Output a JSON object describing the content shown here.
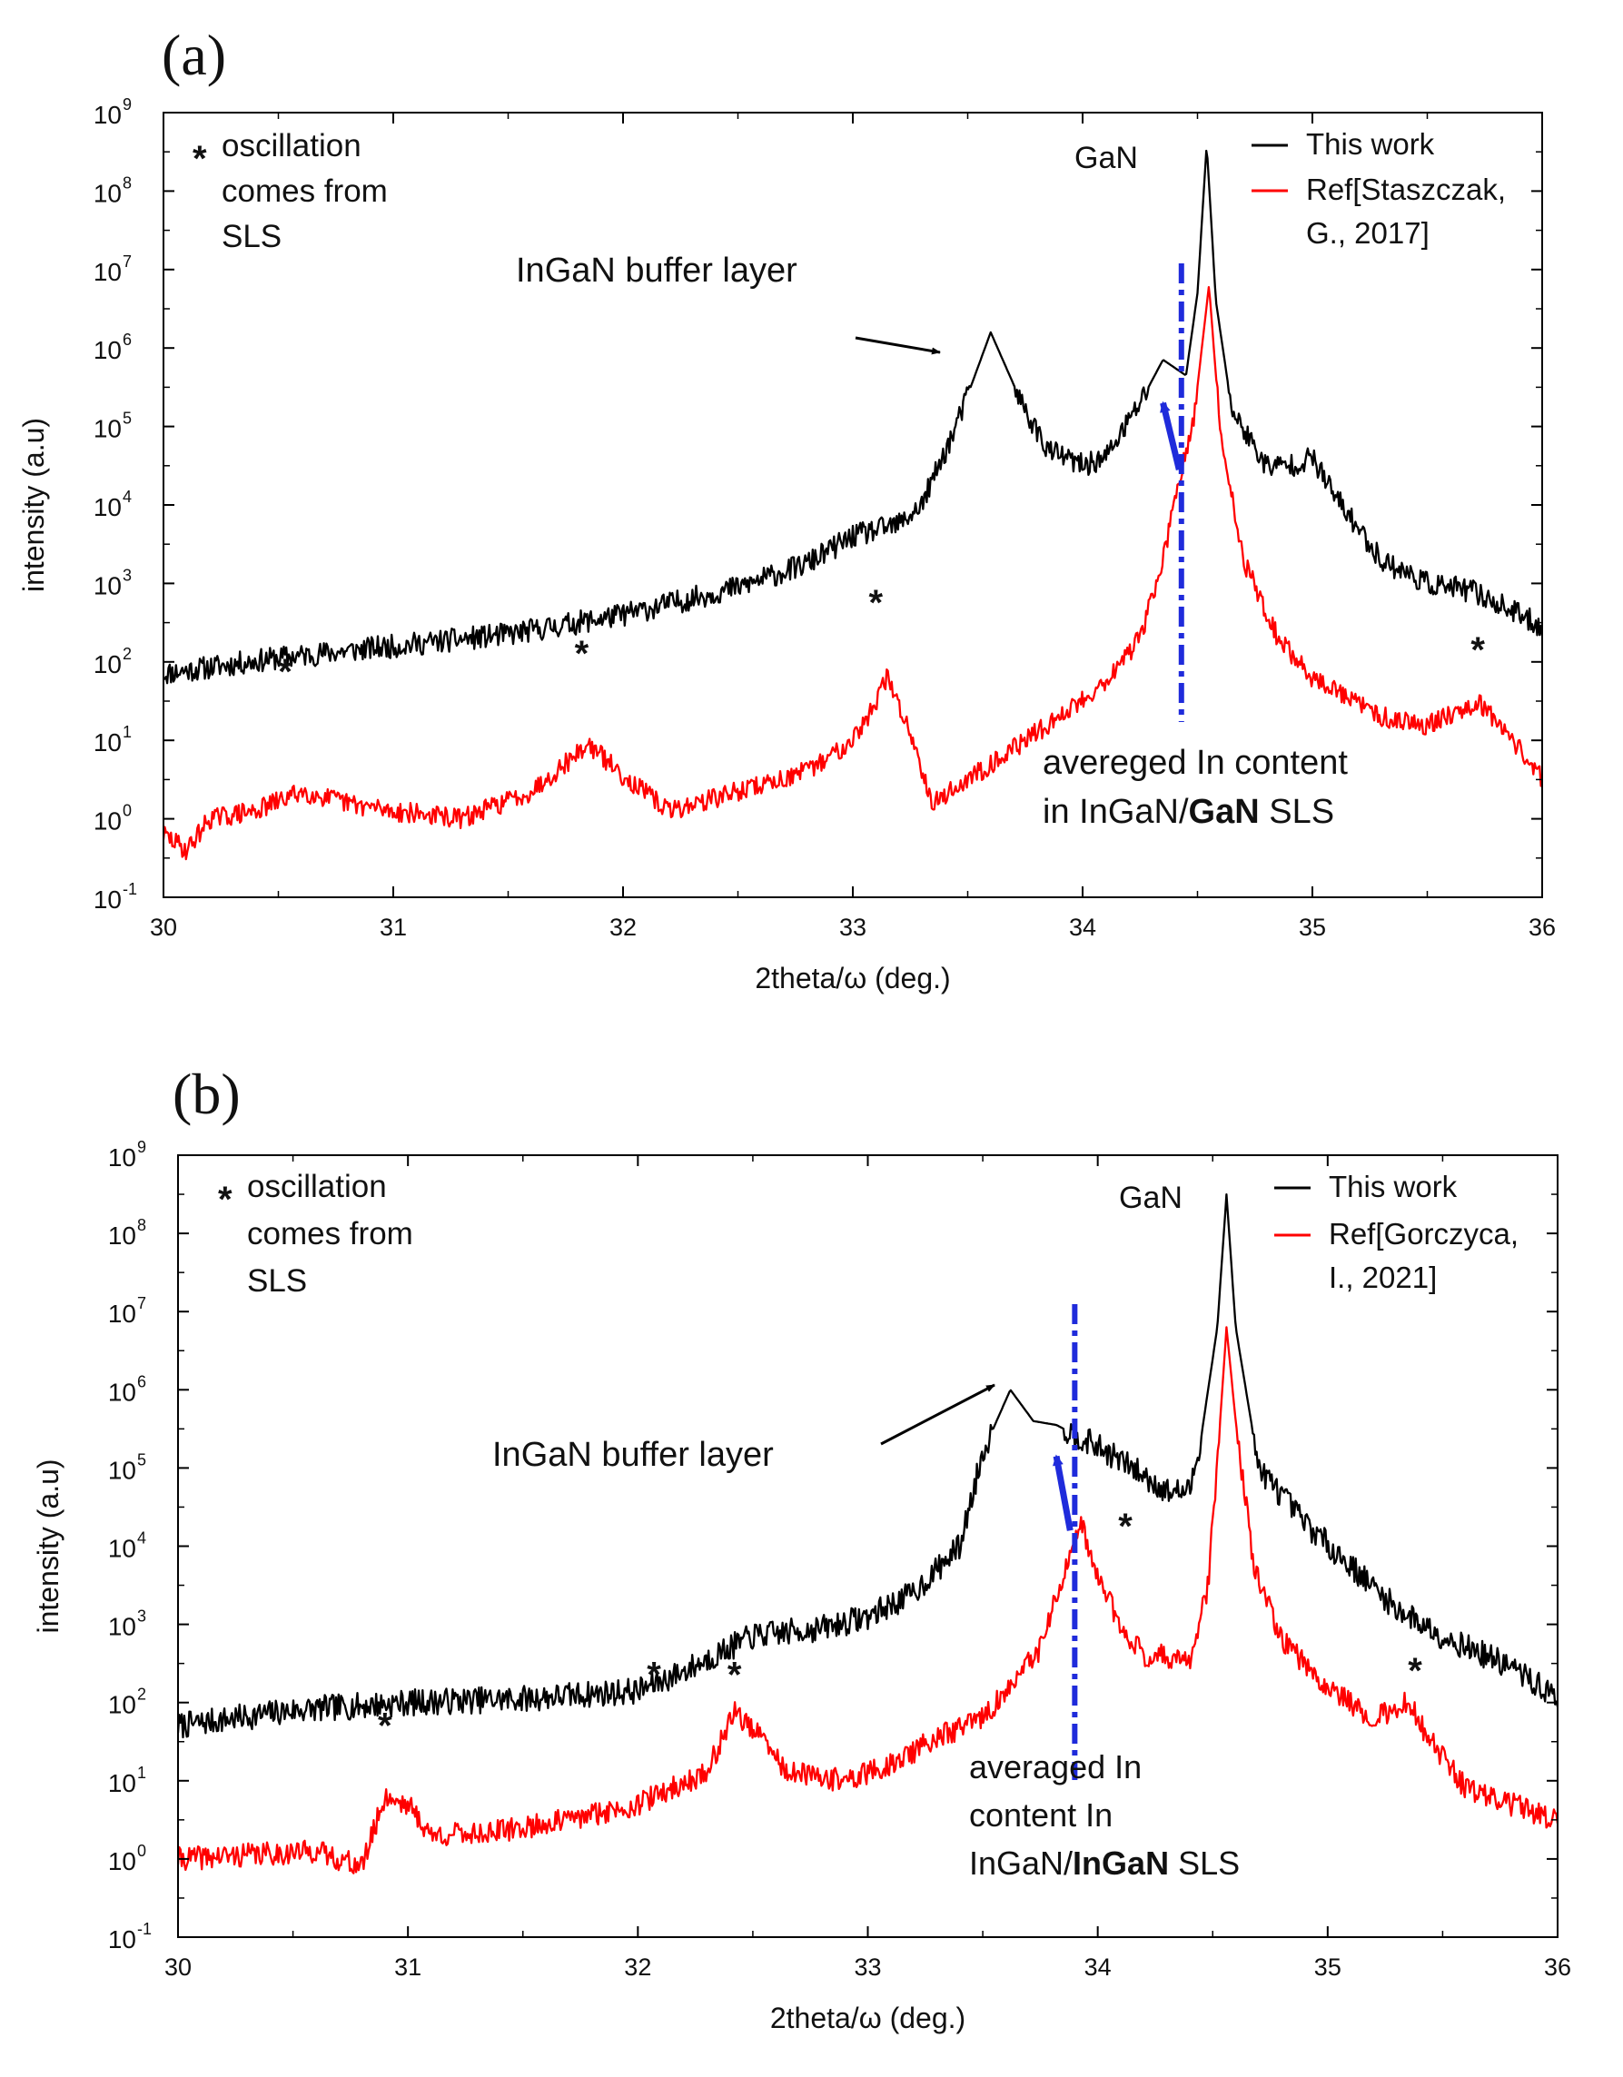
{
  "figure": {
    "panel_labels": [
      "(a)",
      "(b)"
    ]
  },
  "chart_data": [
    {
      "panel": "(a)",
      "type": "line",
      "xlabel": "2theta/ω (deg.)",
      "ylabel": "intensity (a.u)",
      "xlim": [
        30,
        36
      ],
      "ylim_log10": [
        -1,
        9
      ],
      "y_scale": "log",
      "xticks": [
        "30",
        "31",
        "32",
        "33",
        "34",
        "35",
        "36"
      ],
      "yticks": [
        {
          "base": "10",
          "exp": "-1"
        },
        {
          "base": "10",
          "exp": "0"
        },
        {
          "base": "10",
          "exp": "1"
        },
        {
          "base": "10",
          "exp": "2"
        },
        {
          "base": "10",
          "exp": "3"
        },
        {
          "base": "10",
          "exp": "4"
        },
        {
          "base": "10",
          "exp": "5"
        },
        {
          "base": "10",
          "exp": "6"
        },
        {
          "base": "10",
          "exp": "7"
        },
        {
          "base": "10",
          "exp": "8"
        },
        {
          "base": "10",
          "exp": "9"
        }
      ],
      "legend": {
        "position": "top-right",
        "entries": [
          {
            "label_lines": [
              "This work"
            ],
            "color": "#000000"
          },
          {
            "label_lines": [
              "Ref[Staszczak,",
              "G., 2017]"
            ],
            "color": "#ff0000"
          }
        ]
      },
      "note": {
        "star": "*",
        "lines": [
          "oscillation",
          "comes from",
          "SLS"
        ]
      },
      "annotations": {
        "gan": "GaN",
        "buffer": "InGaN buffer layer",
        "avg_lines": [
          {
            "text": "avereged In content"
          },
          {
            "pre": "in InGaN/",
            "bold": "GaN",
            "post": " SLS"
          }
        ]
      },
      "dashed_line_x": 34.43,
      "arrow": {
        "x_from": 34.42,
        "y_from_log10": 4.45,
        "x_to": 34.35,
        "y_to_log10": 5.3
      },
      "stars": [
        {
          "x": 30.53,
          "y_log10": 1.72
        },
        {
          "x": 31.82,
          "y_log10": 1.95
        },
        {
          "x": 33.1,
          "y_log10": 2.6
        },
        {
          "x": 35.72,
          "y_log10": 2.0
        }
      ],
      "series": [
        {
          "name": "This work",
          "color": "#000000",
          "noise": 0.15,
          "seed": 11,
          "points": [
            [
              30,
              1.85
            ],
            [
              30.5,
              2.05
            ],
            [
              31,
              2.2
            ],
            [
              31.5,
              2.35
            ],
            [
              32,
              2.6
            ],
            [
              32.5,
              2.95
            ],
            [
              32.8,
              3.25
            ],
            [
              33,
              3.6
            ],
            [
              33.2,
              3.75
            ],
            [
              33.3,
              4.0
            ],
            [
              33.45,
              5.0
            ],
            [
              33.6,
              6.2
            ],
            [
              33.75,
              5.2
            ],
            [
              33.85,
              4.7
            ],
            [
              34.0,
              4.5
            ],
            [
              34.1,
              4.6
            ],
            [
              34.25,
              5.3
            ],
            [
              34.35,
              5.85
            ],
            [
              34.45,
              5.65
            ],
            [
              34.5,
              6.7
            ],
            [
              34.54,
              8.6
            ],
            [
              34.58,
              6.6
            ],
            [
              34.65,
              5.2
            ],
            [
              34.8,
              4.5
            ],
            [
              34.9,
              4.5
            ],
            [
              35.0,
              4.6
            ],
            [
              35.1,
              4.1
            ],
            [
              35.3,
              3.3
            ],
            [
              35.5,
              3.0
            ],
            [
              35.7,
              2.9
            ],
            [
              36,
              2.45
            ]
          ]
        },
        {
          "name": "Ref[Staszczak, G., 2017]",
          "color": "#ff0000",
          "noise": 0.13,
          "seed": 29,
          "points": [
            [
              30,
              -0.2
            ],
            [
              30.1,
              -0.4
            ],
            [
              30.2,
              0.0
            ],
            [
              30.4,
              0.1
            ],
            [
              30.6,
              0.35
            ],
            [
              30.8,
              0.2
            ],
            [
              31,
              0.1
            ],
            [
              31.3,
              0.0
            ],
            [
              31.6,
              0.35
            ],
            [
              31.85,
              0.95
            ],
            [
              32.0,
              0.55
            ],
            [
              32.2,
              0.1
            ],
            [
              32.5,
              0.35
            ],
            [
              32.8,
              0.6
            ],
            [
              32.95,
              0.9
            ],
            [
              33.05,
              1.2
            ],
            [
              33.15,
              1.8
            ],
            [
              33.25,
              1.1
            ],
            [
              33.35,
              0.2
            ],
            [
              33.6,
              0.7
            ],
            [
              33.9,
              1.3
            ],
            [
              34.1,
              1.75
            ],
            [
              34.25,
              2.3
            ],
            [
              34.35,
              3.3
            ],
            [
              34.42,
              4.3
            ],
            [
              34.48,
              5.0
            ],
            [
              34.55,
              6.8
            ],
            [
              34.6,
              4.9
            ],
            [
              34.7,
              3.3
            ],
            [
              34.85,
              2.3
            ],
            [
              35.0,
              1.8
            ],
            [
              35.3,
              1.3
            ],
            [
              35.5,
              1.2
            ],
            [
              35.72,
              1.5
            ],
            [
              35.85,
              1.1
            ],
            [
              36,
              0.5
            ]
          ]
        }
      ]
    },
    {
      "panel": "(b)",
      "type": "line",
      "xlabel": "2theta/ω (deg.)",
      "ylabel": "intensity (a.u)",
      "xlim": [
        30,
        36
      ],
      "ylim_log10": [
        -1,
        9
      ],
      "y_scale": "log",
      "xticks": [
        "30",
        "31",
        "32",
        "33",
        "34",
        "35",
        "36"
      ],
      "yticks": [
        {
          "base": "10",
          "exp": "-1"
        },
        {
          "base": "10",
          "exp": "0"
        },
        {
          "base": "10",
          "exp": "1"
        },
        {
          "base": "10",
          "exp": "2"
        },
        {
          "base": "10",
          "exp": "3"
        },
        {
          "base": "10",
          "exp": "4"
        },
        {
          "base": "10",
          "exp": "5"
        },
        {
          "base": "10",
          "exp": "6"
        },
        {
          "base": "10",
          "exp": "7"
        },
        {
          "base": "10",
          "exp": "8"
        },
        {
          "base": "10",
          "exp": "9"
        }
      ],
      "legend": {
        "position": "top-right",
        "entries": [
          {
            "label_lines": [
              "This work"
            ],
            "color": "#000000"
          },
          {
            "label_lines": [
              "Ref[Gorczyca,",
              "I., 2021]"
            ],
            "color": "#ff0000"
          }
        ]
      },
      "note": {
        "star": "*",
        "lines": [
          "oscillation",
          "comes from",
          "SLS"
        ]
      },
      "annotations": {
        "gan": "GaN",
        "buffer": "InGaN buffer layer",
        "avg_lines": [
          {
            "text": "averaged In"
          },
          {
            "text": "content In"
          },
          {
            "pre": "InGaN/",
            "bold": "InGaN",
            "post": " SLS"
          }
        ]
      },
      "dashed_line_x": 33.9,
      "arrow": {
        "x_from": 33.88,
        "y_from_log10": 4.2,
        "x_to": 33.82,
        "y_to_log10": 5.15
      },
      "stars": [
        {
          "x": 30.9,
          "y_log10": 1.55
        },
        {
          "x": 32.07,
          "y_log10": 2.2
        },
        {
          "x": 32.42,
          "y_log10": 2.2
        },
        {
          "x": 34.12,
          "y_log10": 4.1
        },
        {
          "x": 35.38,
          "y_log10": 2.25
        }
      ],
      "series": [
        {
          "name": "This work",
          "color": "#000000",
          "noise": 0.17,
          "seed": 7,
          "points": [
            [
              30,
              1.7
            ],
            [
              30.5,
              1.9
            ],
            [
              31,
              2.0
            ],
            [
              31.5,
              2.05
            ],
            [
              32,
              2.15
            ],
            [
              32.2,
              2.4
            ],
            [
              32.5,
              2.85
            ],
            [
              32.8,
              2.95
            ],
            [
              33.0,
              3.1
            ],
            [
              33.2,
              3.4
            ],
            [
              33.4,
              4.0
            ],
            [
              33.5,
              5.2
            ],
            [
              33.62,
              6.0
            ],
            [
              33.72,
              5.6
            ],
            [
              33.82,
              5.55
            ],
            [
              33.95,
              5.35
            ],
            [
              34.1,
              5.1
            ],
            [
              34.3,
              4.7
            ],
            [
              34.4,
              4.7
            ],
            [
              34.45,
              5.4
            ],
            [
              34.52,
              6.8
            ],
            [
              34.56,
              8.5
            ],
            [
              34.6,
              6.8
            ],
            [
              34.7,
              5.0
            ],
            [
              34.9,
              4.3
            ],
            [
              35.1,
              3.75
            ],
            [
              35.3,
              3.2
            ],
            [
              35.5,
              2.85
            ],
            [
              35.8,
              2.45
            ],
            [
              36,
              2.05
            ]
          ]
        },
        {
          "name": "Ref[Gorczyca, I., 2021]",
          "color": "#ff0000",
          "noise": 0.15,
          "seed": 41,
          "points": [
            [
              30,
              0.0
            ],
            [
              30.3,
              0.05
            ],
            [
              30.6,
              0.1
            ],
            [
              30.8,
              -0.1
            ],
            [
              30.9,
              0.8
            ],
            [
              31.0,
              0.7
            ],
            [
              31.1,
              0.3
            ],
            [
              31.4,
              0.35
            ],
            [
              31.7,
              0.5
            ],
            [
              32,
              0.7
            ],
            [
              32.3,
              1.1
            ],
            [
              32.42,
              1.9
            ],
            [
              32.55,
              1.5
            ],
            [
              32.65,
              1.1
            ],
            [
              32.9,
              1.0
            ],
            [
              33.1,
              1.2
            ],
            [
              33.3,
              1.55
            ],
            [
              33.5,
              1.8
            ],
            [
              33.65,
              2.3
            ],
            [
              33.75,
              2.7
            ],
            [
              33.85,
              3.6
            ],
            [
              33.93,
              4.25
            ],
            [
              34.0,
              3.6
            ],
            [
              34.1,
              3.0
            ],
            [
              34.2,
              2.6
            ],
            [
              34.3,
              2.6
            ],
            [
              34.4,
              2.5
            ],
            [
              34.48,
              3.5
            ],
            [
              34.53,
              5.5
            ],
            [
              34.56,
              6.8
            ],
            [
              34.6,
              5.6
            ],
            [
              34.68,
              3.7
            ],
            [
              34.8,
              2.8
            ],
            [
              35.0,
              2.2
            ],
            [
              35.2,
              1.8
            ],
            [
              35.35,
              2.0
            ],
            [
              35.45,
              1.5
            ],
            [
              35.6,
              0.9
            ],
            [
              36,
              0.5
            ]
          ]
        }
      ]
    }
  ]
}
